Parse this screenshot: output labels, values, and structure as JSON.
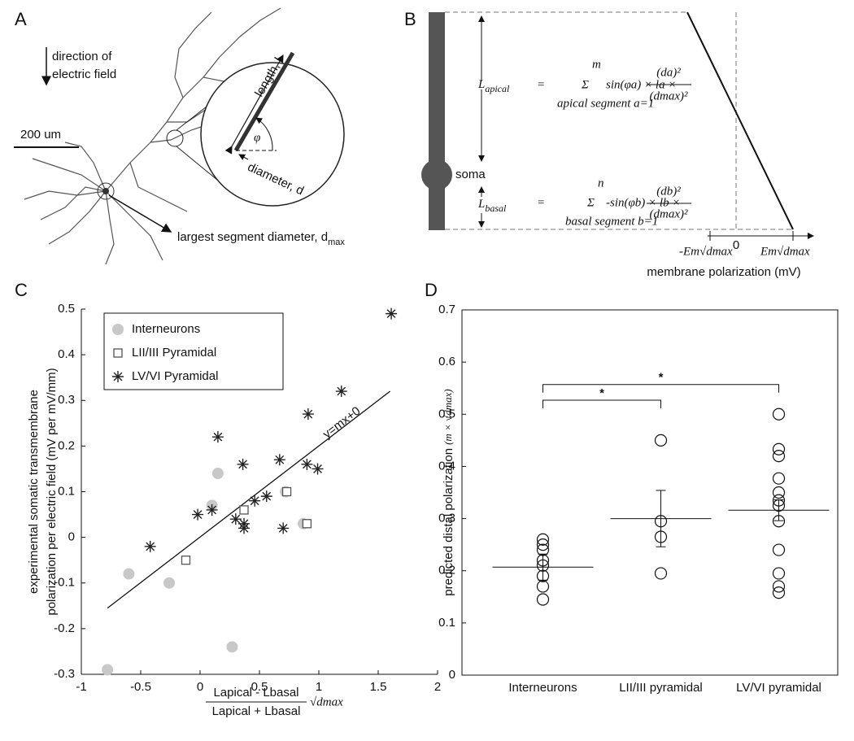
{
  "panel_labels": [
    "A",
    "B",
    "C",
    "D"
  ],
  "diagram_a": {
    "field_label": [
      "direction of",
      "electric field"
    ],
    "scale_bar": "200 um",
    "length_label": "length, l",
    "angle_label": "φ",
    "diameter_label": "diameter, d",
    "dmax_label": "largest segment diameter, d",
    "dmax_sub": "max"
  },
  "diagram_b": {
    "soma": "soma",
    "apical": {
      "L": "L",
      "sub": "apical",
      "eq": "=",
      "sigma": "Σ",
      "top": "m",
      "bottom": "apical segment a=1",
      "body": "sin(φa) × la ×",
      "num": "(da)²",
      "den": "(dmax)²"
    },
    "basal": {
      "L": "L",
      "sub": "basal",
      "eq": "=",
      "sigma": "Σ",
      "top": "n",
      "bottom": "basal segment b=1",
      "body": "-sin(φb) × lb ×",
      "num": "(db)²",
      "den": "(dmax)²"
    },
    "axis": {
      "left": "-Em√dmax",
      "zero": "0",
      "right": "Em√dmax",
      "title": "membrane polarization (mV)"
    }
  },
  "chart_data": [
    {
      "type": "scatter",
      "ylabel": [
        "experimental somatic transmembrane",
        "polarization per electric field (mV per mV/mm)"
      ],
      "xlabel": {
        "num": "Lapical - Lbasal",
        "den": "Lapical + Lbasal",
        "factor": "√dmax"
      },
      "xlim": [
        -1,
        2
      ],
      "xticks": [
        -1,
        -0.5,
        0,
        0.5,
        1,
        1.5,
        2
      ],
      "ylim": [
        -0.3,
        0.5
      ],
      "yticks": [
        -0.3,
        -0.2,
        -0.1,
        0,
        0.1,
        0.2,
        0.3,
        0.4,
        0.5
      ],
      "legend": "upper left",
      "series": [
        {
          "name": "Interneurons",
          "marker": "circle",
          "color": "#c8c8c8",
          "x": [
            -0.78,
            -0.6,
            -0.26,
            0.1,
            0.15,
            0.27,
            0.72,
            0.87
          ],
          "values": [
            -0.29,
            -0.08,
            -0.1,
            0.07,
            0.14,
            -0.24,
            0.1,
            0.03
          ]
        },
        {
          "name": "LII/III Pyramidal",
          "marker": "square",
          "color": "#555555",
          "x": [
            -0.12,
            0.37,
            0.73,
            0.9
          ],
          "values": [
            -0.05,
            0.06,
            0.1,
            0.03
          ]
        },
        {
          "name": "LV/VI Pyramidal",
          "marker": "asterisk",
          "color": "#222222",
          "x": [
            -0.42,
            -0.02,
            0.1,
            0.15,
            0.3,
            0.36,
            0.37,
            0.37,
            0.46,
            0.56,
            0.67,
            0.7,
            0.91,
            0.9,
            0.99,
            1.19,
            1.61
          ],
          "values": [
            -0.02,
            0.05,
            0.06,
            0.22,
            0.04,
            0.16,
            0.03,
            0.02,
            0.08,
            0.09,
            0.17,
            0.02,
            0.27,
            0.16,
            0.15,
            0.32,
            0.49
          ]
        }
      ],
      "fit": {
        "label": "y=mx+0",
        "x": [
          -0.78,
          1.6
        ],
        "y": [
          -0.155,
          0.32
        ]
      }
    },
    {
      "type": "dot",
      "ylabel": [
        "predicted distal polarization",
        "(m × √dmax)"
      ],
      "categories": [
        "Interneurons",
        "LII/III pyramidal",
        "LV/VI pyramidal"
      ],
      "ylim": [
        0,
        0.7
      ],
      "yticks": [
        0,
        0.1,
        0.2,
        0.3,
        0.4,
        0.5,
        0.6,
        0.7
      ],
      "groups": [
        [
          0.26,
          0.25,
          0.24,
          0.22,
          0.21,
          0.19,
          0.17,
          0.145
        ],
        [
          0.45,
          0.295,
          0.265,
          0.195
        ],
        [
          0.5,
          0.433,
          0.42,
          0.377,
          0.35,
          0.335,
          0.325,
          0.295,
          0.24,
          0.195,
          0.17,
          0.158
        ]
      ],
      "means": [
        0.207,
        0.3,
        0.316
      ],
      "errors": [
        0.025,
        0.054,
        0.02
      ],
      "brackets": [
        {
          "from": 0,
          "to": 1,
          "y": 0.527,
          "label": "*"
        },
        {
          "from": 0,
          "to": 2,
          "y": 0.557,
          "label": "*"
        }
      ]
    }
  ]
}
